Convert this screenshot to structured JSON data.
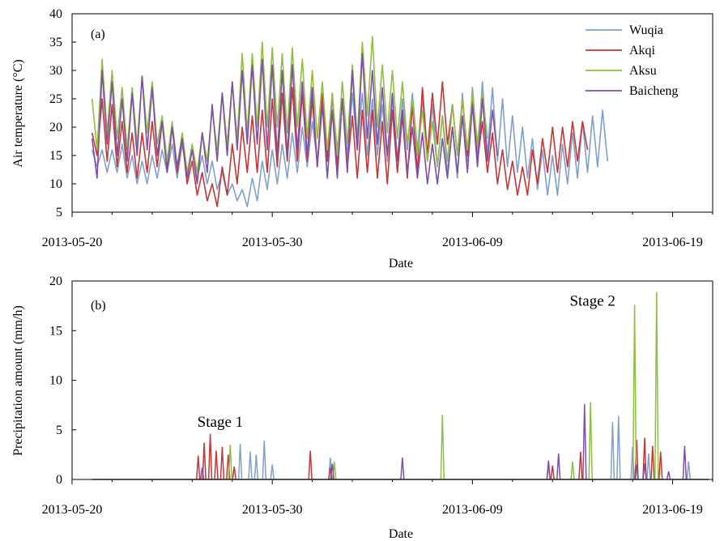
{
  "chart_data": [
    {
      "type": "line",
      "panel_label": "(a)",
      "xlabel": "Date",
      "ylabel": "Air temperature (°C)",
      "ylim": [
        5,
        40
      ],
      "yticks": [
        5,
        10,
        15,
        20,
        25,
        30,
        35,
        40
      ],
      "xticks": [
        "2013-05-20",
        "2013-05-30",
        "2013-06-09",
        "2013-06-19"
      ],
      "xlim": [
        0,
        32
      ],
      "legend": "top-right",
      "sample_interval_days": 0.25,
      "series": [
        {
          "name": "Wuqia",
          "color": "#7f9fcf",
          "start_day": 1,
          "values": [
            16,
            13,
            16,
            12,
            16,
            12,
            17,
            11,
            15,
            10,
            14,
            10,
            15,
            11,
            16,
            12,
            17,
            11,
            17,
            12,
            16,
            11,
            15,
            10,
            14,
            9,
            12,
            8,
            10,
            7,
            9,
            6,
            11,
            7,
            14,
            9,
            16,
            10,
            17,
            11,
            19,
            12,
            20,
            13,
            21,
            14,
            24,
            15,
            25,
            16,
            25,
            15,
            26,
            16,
            26,
            15,
            25,
            15,
            24,
            14,
            25,
            14,
            25,
            16,
            26,
            16,
            25,
            14,
            24,
            13,
            22,
            12,
            20,
            11,
            26,
            14,
            27,
            15,
            28,
            15,
            27,
            14,
            25,
            13,
            22,
            12,
            20,
            11,
            18,
            9,
            16,
            8,
            15,
            8,
            17,
            10,
            19,
            11,
            21,
            12,
            22,
            13,
            23,
            14
          ]
        },
        {
          "name": "Akqi",
          "color": "#cc3333",
          "start_day": 1,
          "values": [
            19,
            15,
            25,
            14,
            24,
            13,
            21,
            12,
            19,
            11,
            19,
            12,
            21,
            13,
            21,
            13,
            20,
            12,
            18,
            10,
            14,
            8,
            12,
            7,
            10,
            6,
            13,
            8,
            17,
            10,
            20,
            12,
            22,
            12,
            23,
            12,
            25,
            13,
            26,
            14,
            27,
            14,
            26,
            14,
            25,
            13,
            26,
            14,
            26,
            13,
            25,
            13,
            22,
            11,
            23,
            12,
            23,
            11,
            21,
            10,
            23,
            12,
            22,
            11,
            24,
            12,
            27,
            15,
            26,
            17,
            28,
            17,
            24,
            15,
            25,
            15,
            25,
            14,
            21,
            12,
            19,
            10,
            16,
            9,
            14,
            8,
            13,
            8,
            16,
            10,
            18,
            12,
            20,
            12,
            20,
            13,
            21,
            14,
            21,
            16
          ]
        },
        {
          "name": "Aksu",
          "color": "#8fbf3f",
          "start_day": 1,
          "values": [
            25,
            16,
            32,
            19,
            30,
            18,
            27,
            16,
            27,
            17,
            29,
            19,
            28,
            17,
            22,
            14,
            21,
            13,
            19,
            12,
            17,
            12,
            19,
            14,
            23,
            16,
            26,
            17,
            28,
            18,
            33,
            19,
            33,
            20,
            35,
            20,
            34,
            20,
            33,
            19,
            34,
            20,
            32,
            18,
            30,
            18,
            28,
            16,
            26,
            15,
            28,
            17,
            31,
            18,
            35,
            22,
            36,
            20,
            31,
            19,
            30,
            18,
            28,
            17,
            25,
            15,
            23,
            14,
            21,
            13,
            22,
            14,
            24,
            15,
            25,
            16,
            26,
            17,
            26,
            18
          ]
        },
        {
          "name": "Baicheng",
          "color": "#7f4fa8",
          "start_day": 1,
          "values": [
            18,
            11,
            30,
            17,
            28,
            15,
            25,
            14,
            26,
            15,
            29,
            16,
            27,
            15,
            21,
            12,
            20,
            13,
            18,
            11,
            16,
            10,
            19,
            12,
            24,
            14,
            26,
            15,
            28,
            16,
            30,
            17,
            31,
            17,
            32,
            16,
            31,
            15,
            30,
            15,
            31,
            16,
            28,
            15,
            27,
            13,
            24,
            11,
            23,
            11,
            25,
            12,
            30,
            16,
            33,
            18,
            30,
            17,
            27,
            15,
            26,
            14,
            23,
            12,
            20,
            11,
            19,
            10,
            17,
            10,
            18,
            11,
            20,
            12,
            22,
            12,
            24,
            13,
            25,
            14,
            23,
            15
          ]
        }
      ]
    },
    {
      "type": "line",
      "panel_label": "(b)",
      "xlabel": "Date",
      "ylabel": "Precipitation amount (mm/h)",
      "ylim": [
        0,
        20
      ],
      "yticks": [
        0,
        5,
        10,
        15,
        20
      ],
      "xticks": [
        "2013-05-20",
        "2013-05-30",
        "2013-06-09",
        "2013-06-19"
      ],
      "xlim": [
        0,
        32
      ],
      "annotations": [
        {
          "text": "Stage 1",
          "x_day": 7.4,
          "y": 5.3
        },
        {
          "text": "Stage 2",
          "x_day": 26.0,
          "y": 17.5
        }
      ],
      "series": [
        {
          "name": "Wuqia",
          "color": "#7f9fcf",
          "spikes": [
            [
              8.4,
              3.6
            ],
            [
              8.9,
              2.8
            ],
            [
              9.2,
              2.5
            ],
            [
              9.6,
              3.9
            ],
            [
              10.0,
              1.5
            ],
            [
              12.9,
              2.2
            ],
            [
              27.0,
              5.8
            ],
            [
              27.3,
              6.4
            ],
            [
              28.0,
              3.3
            ],
            [
              28.8,
              2.6
            ],
            [
              30.8,
              1.8
            ]
          ]
        },
        {
          "name": "Akqi",
          "color": "#cc3333",
          "spikes": [
            [
              6.3,
              2.4
            ],
            [
              6.6,
              3.7
            ],
            [
              6.9,
              4.6
            ],
            [
              7.2,
              2.9
            ],
            [
              7.5,
              3.3
            ],
            [
              7.8,
              2.5
            ],
            [
              8.1,
              1.3
            ],
            [
              11.9,
              2.9
            ],
            [
              12.9,
              1.2
            ],
            [
              24.0,
              1.4
            ],
            [
              25.4,
              2.8
            ],
            [
              28.2,
              4.0
            ],
            [
              28.6,
              4.2
            ],
            [
              29.0,
              3.4
            ],
            [
              29.4,
              2.8
            ]
          ]
        },
        {
          "name": "Aksu",
          "color": "#8fbf3f",
          "spikes": [
            [
              7.9,
              3.5
            ],
            [
              13.1,
              1.8
            ],
            [
              18.5,
              6.5
            ],
            [
              23.8,
              1.2
            ],
            [
              25.0,
              1.8
            ],
            [
              25.9,
              7.8
            ],
            [
              28.1,
              17.6
            ],
            [
              29.2,
              18.9
            ]
          ]
        },
        {
          "name": "Baicheng",
          "color": "#7f4fa8",
          "spikes": [
            [
              6.5,
              1.2
            ],
            [
              13.0,
              1.6
            ],
            [
              16.5,
              2.2
            ],
            [
              23.8,
              1.9
            ],
            [
              24.3,
              2.6
            ],
            [
              25.6,
              7.6
            ],
            [
              28.2,
              1.5
            ],
            [
              28.6,
              1.6
            ],
            [
              29.8,
              0.8
            ],
            [
              30.6,
              3.4
            ]
          ]
        }
      ]
    }
  ]
}
